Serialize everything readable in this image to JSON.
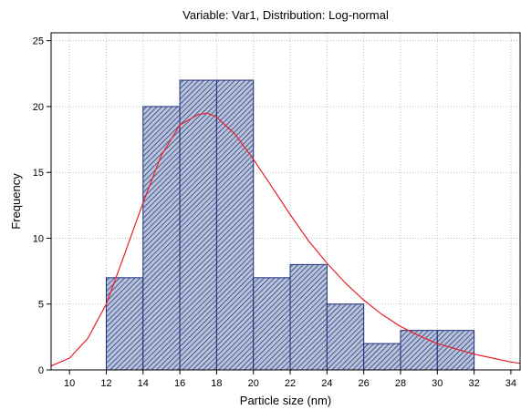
{
  "chart_data": {
    "type": "bar",
    "title": "Variable: Var1, Distribution: Log-normal",
    "xlabel": "Particle size (nm)",
    "ylabel": "Frequency",
    "xlim": [
      9,
      34.5
    ],
    "ylim": [
      0,
      25.6
    ],
    "x_ticks": [
      10,
      12,
      14,
      16,
      18,
      20,
      22,
      24,
      26,
      28,
      30,
      32,
      34
    ],
    "y_ticks": [
      0,
      5,
      10,
      15,
      20,
      25
    ],
    "grid": true,
    "bins": [
      {
        "x0": 12,
        "x1": 14,
        "value": 7
      },
      {
        "x0": 14,
        "x1": 16,
        "value": 20
      },
      {
        "x0": 16,
        "x1": 18,
        "value": 22
      },
      {
        "x0": 18,
        "x1": 20,
        "value": 22
      },
      {
        "x0": 20,
        "x1": 22,
        "value": 7
      },
      {
        "x0": 22,
        "x1": 24,
        "value": 8
      },
      {
        "x0": 24,
        "x1": 26,
        "value": 5
      },
      {
        "x0": 26,
        "x1": 28,
        "value": 2
      },
      {
        "x0": 28,
        "x1": 30,
        "value": 3
      },
      {
        "x0": 30,
        "x1": 32,
        "value": 3
      }
    ],
    "fit_curve": {
      "distribution": "log-normal",
      "color": "#e8202a",
      "x": [
        9,
        10,
        11,
        12,
        13,
        14,
        15,
        16,
        17,
        17.5,
        18,
        19,
        20,
        21,
        22,
        23,
        24,
        25,
        26,
        27,
        28,
        29,
        30,
        31,
        32,
        33,
        34,
        34.5
      ],
      "y": [
        0.3,
        0.9,
        2.4,
        5.0,
        8.8,
        12.7,
        16.3,
        18.6,
        19.4,
        19.5,
        19.2,
        17.9,
        16.0,
        13.9,
        11.8,
        9.8,
        8.1,
        6.6,
        5.3,
        4.2,
        3.3,
        2.6,
        2.0,
        1.6,
        1.2,
        0.9,
        0.6,
        0.5
      ]
    },
    "colors": {
      "bar_fill": "#b8c2d8",
      "bar_stroke": "#1a2d7a",
      "hatch": "#1a2d7a",
      "grid": "#bdbdbd"
    }
  }
}
